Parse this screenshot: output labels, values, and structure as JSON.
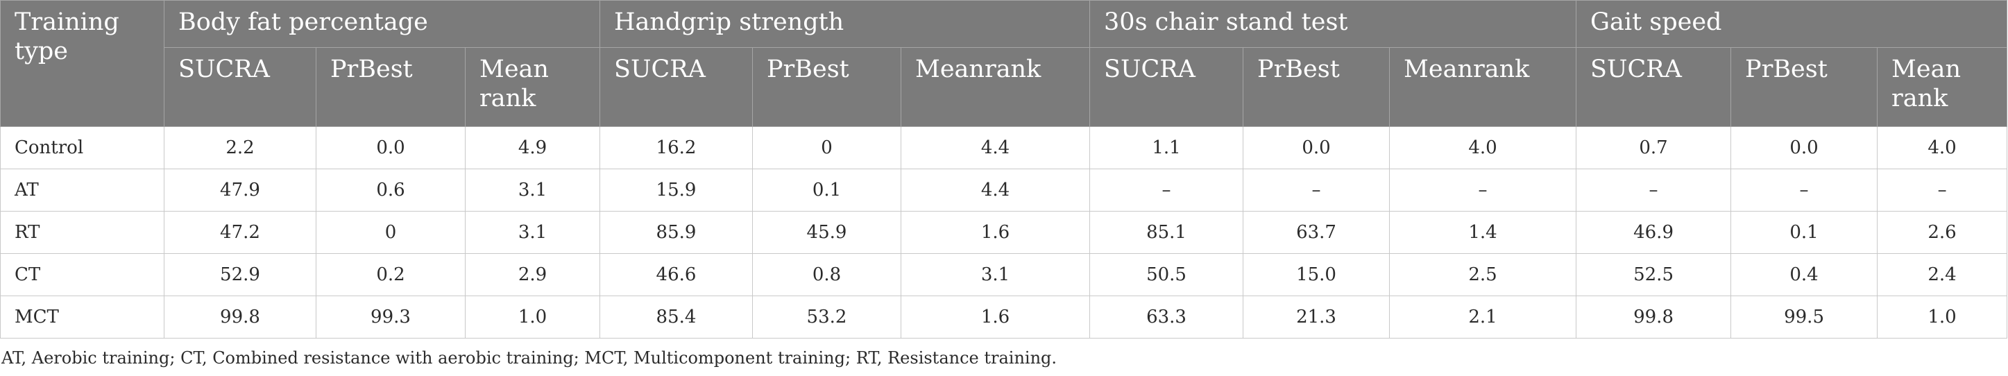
{
  "table": {
    "row_header": "Training type",
    "groups": [
      {
        "title": "Body fat percentage",
        "subs": [
          "SUCRA",
          "PrBest",
          "Mean rank"
        ]
      },
      {
        "title": "Handgrip strength",
        "subs": [
          "SUCRA",
          "PrBest",
          "Meanrank"
        ]
      },
      {
        "title": "30s chair stand test",
        "subs": [
          "SUCRA",
          "PrBest",
          "Meanrank"
        ]
      },
      {
        "title": "Gait speed",
        "subs": [
          "SUCRA",
          "PrBest",
          "Mean rank"
        ]
      }
    ],
    "rows": [
      {
        "label": "Control",
        "cells": [
          "2.2",
          "0.0",
          "4.9",
          "16.2",
          "0",
          "4.4",
          "1.1",
          "0.0",
          "4.0",
          "0.7",
          "0.0",
          "4.0"
        ]
      },
      {
        "label": "AT",
        "cells": [
          "47.9",
          "0.6",
          "3.1",
          "15.9",
          "0.1",
          "4.4",
          "–",
          "–",
          "–",
          "–",
          "–",
          "–"
        ]
      },
      {
        "label": "RT",
        "cells": [
          "47.2",
          "0",
          "3.1",
          "85.9",
          "45.9",
          "1.6",
          "85.1",
          "63.7",
          "1.4",
          "46.9",
          "0.1",
          "2.6"
        ]
      },
      {
        "label": "CT",
        "cells": [
          "52.9",
          "0.2",
          "2.9",
          "46.6",
          "0.8",
          "3.1",
          "50.5",
          "15.0",
          "2.5",
          "52.5",
          "0.4",
          "2.4"
        ]
      },
      {
        "label": "MCT",
        "cells": [
          "99.8",
          "99.3",
          "1.0",
          "85.4",
          "53.2",
          "1.6",
          "63.3",
          "21.3",
          "2.1",
          "99.8",
          "99.5",
          "1.0"
        ]
      }
    ]
  },
  "footnote": "AT, Aerobic training; CT, Combined resistance with aerobic training; MCT, Multicomponent training; RT, Resistance training."
}
